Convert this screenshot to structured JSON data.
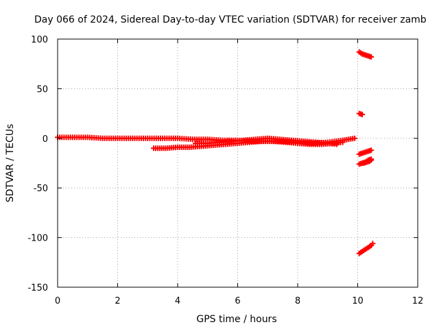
{
  "chart_data": {
    "type": "scatter",
    "title": "Day 066 of 2024, Sidereal Day-to-day VTEC variation (SDTVAR) for receiver zamb",
    "xlabel": "GPS time / hours",
    "ylabel": "SDTVAR / TECUs",
    "xlim": [
      0,
      12
    ],
    "ylim": [
      -150,
      100
    ],
    "xticks": [
      0,
      2,
      4,
      6,
      8,
      10,
      12
    ],
    "yticks": [
      -150,
      -100,
      -50,
      0,
      50,
      100
    ],
    "grid": true,
    "marker_color": "#ff0000",
    "series": [
      {
        "x": [
          0.0,
          0.5,
          1.0,
          1.5,
          2.0,
          2.5,
          3.0,
          3.5,
          4.0,
          4.5,
          5.0,
          5.5,
          6.0,
          6.5,
          7.0,
          7.5,
          8.0,
          8.5,
          9.0,
          9.5,
          9.9
        ],
        "y": [
          1,
          1,
          1,
          0,
          0,
          0,
          0,
          0,
          0,
          -1,
          -1,
          -2,
          -2,
          -3,
          -3,
          -3,
          -4,
          -5,
          -4,
          -2,
          0
        ]
      },
      {
        "x": [
          3.2,
          3.6,
          4.0,
          4.4,
          4.8,
          5.2,
          5.6,
          6.0,
          6.4,
          6.8,
          7.2,
          7.6,
          8.0,
          8.4,
          8.8,
          9.2,
          9.5
        ],
        "y": [
          -10,
          -10,
          -9,
          -9,
          -8,
          -7,
          -6,
          -5,
          -4,
          -3,
          -3,
          -4,
          -5,
          -6,
          -6,
          -5,
          -4
        ]
      },
      {
        "x": [
          4.6,
          5.0,
          5.4,
          5.8,
          6.2,
          6.6,
          7.0,
          7.4,
          7.8,
          8.2,
          8.6,
          9.0,
          9.3
        ],
        "y": [
          -5,
          -5,
          -4,
          -3,
          -2,
          -1,
          0,
          -1,
          -2,
          -3,
          -4,
          -5,
          -6
        ]
      },
      {
        "x": [
          10.05,
          10.15,
          10.25,
          10.35,
          10.45
        ],
        "y": [
          87,
          85,
          84,
          83,
          82
        ]
      },
      {
        "x": [
          10.05,
          10.15
        ],
        "y": [
          25,
          24
        ]
      },
      {
        "x": [
          10.05,
          10.15,
          10.25,
          10.35,
          10.45
        ],
        "y": [
          -16,
          -15,
          -14,
          -13,
          -12
        ]
      },
      {
        "x": [
          10.05,
          10.15,
          10.25,
          10.35,
          10.45
        ],
        "y": [
          -26,
          -25,
          -24,
          -22,
          -21
        ]
      },
      {
        "x": [
          10.2,
          10.3,
          10.4,
          10.45
        ],
        "y": [
          -25,
          -24,
          -23,
          -22
        ]
      },
      {
        "x": [
          10.05,
          10.15,
          10.25,
          10.35,
          10.45,
          10.5
        ],
        "y": [
          -116,
          -114,
          -112,
          -110,
          -108,
          -106
        ]
      }
    ]
  }
}
